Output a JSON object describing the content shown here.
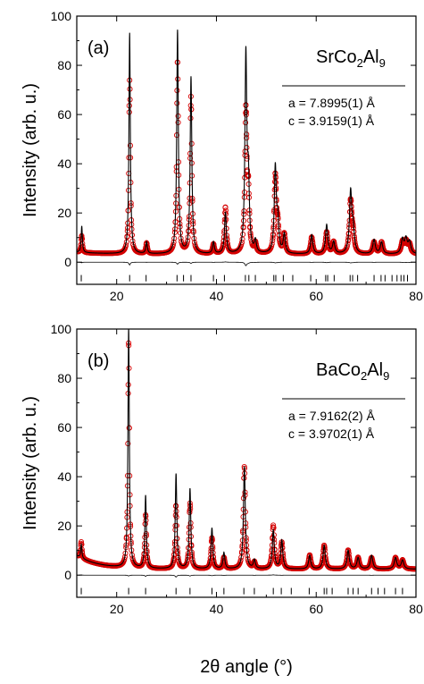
{
  "figure": {
    "xlabel": "2θ angle (°)",
    "ylabel": "Intensity (arb. u.)"
  },
  "chart_data": [
    {
      "type": "line",
      "panel_label": "(a)",
      "compound": {
        "prefix": "SrCo",
        "sub": "2",
        "mid": "Al",
        "sub2": "9"
      },
      "params": [
        "a = 7.8995(1) Å",
        "c = 3.9159(1) Å"
      ],
      "xlabel": "",
      "ylabel": "Intensity (arb. u.)",
      "xlim": [
        12,
        80
      ],
      "ylim": [
        -9,
        100
      ],
      "xticks": [
        20,
        40,
        60,
        80
      ],
      "xtick_labels": [
        "20",
        "40",
        "60",
        "80"
      ],
      "yticks": [
        0,
        20,
        40,
        60,
        80,
        100
      ],
      "ytick_labels": [
        "0",
        "20",
        "40",
        "60",
        "80",
        "100"
      ],
      "background": 3.2,
      "series": [
        {
          "role": "observed",
          "marker": "open-circle",
          "color": "#d40000"
        },
        {
          "role": "calculated",
          "color": "#000000"
        },
        {
          "role": "difference",
          "color": "#000000"
        }
      ],
      "peaks": [
        {
          "x": 13.0,
          "calc": 14,
          "obs": 10
        },
        {
          "x": 22.6,
          "calc": 93,
          "obs": 74
        },
        {
          "x": 26.0,
          "calc": 8,
          "obs": 7.5
        },
        {
          "x": 32.2,
          "calc": 94,
          "obs": 81
        },
        {
          "x": 34.9,
          "calc": 75,
          "obs": 67
        },
        {
          "x": 39.4,
          "calc": 8,
          "obs": 7
        },
        {
          "x": 41.8,
          "calc": 20,
          "obs": 22
        },
        {
          "x": 45.9,
          "calc": 83,
          "obs": 60
        },
        {
          "x": 46.4,
          "calc": 30,
          "obs": 25
        },
        {
          "x": 47.8,
          "calc": 8,
          "obs": 7
        },
        {
          "x": 51.8,
          "calc": 38,
          "obs": 34
        },
        {
          "x": 52.3,
          "calc": 15,
          "obs": 13
        },
        {
          "x": 53.6,
          "calc": 11,
          "obs": 11
        },
        {
          "x": 59.1,
          "calc": 11,
          "obs": 10
        },
        {
          "x": 62.1,
          "calc": 15,
          "obs": 12
        },
        {
          "x": 63.5,
          "calc": 8,
          "obs": 8
        },
        {
          "x": 66.9,
          "calc": 28,
          "obs": 24
        },
        {
          "x": 67.4,
          "calc": 12,
          "obs": 10
        },
        {
          "x": 71.6,
          "calc": 9,
          "obs": 8
        },
        {
          "x": 73.1,
          "calc": 8,
          "obs": 8
        },
        {
          "x": 77.3,
          "calc": 9,
          "obs": 8
        },
        {
          "x": 78.0,
          "calc": 9,
          "obs": 8
        },
        {
          "x": 78.7,
          "calc": 8,
          "obs": 7
        }
      ],
      "reflection_ticks": [
        12.9,
        22.6,
        25.9,
        32.1,
        33.4,
        34.9,
        39.4,
        41.6,
        45.8,
        46.5,
        47.8,
        51.5,
        51.9,
        53.4,
        55.3,
        58.9,
        61.9,
        62.3,
        63.6,
        66.8,
        67.3,
        68.3,
        71.6,
        73.0,
        73.8,
        75.2,
        76.2,
        77.0,
        77.6,
        78.3
      ]
    },
    {
      "type": "line",
      "panel_label": "(b)",
      "compound": {
        "prefix": "BaCo",
        "sub": "2",
        "mid": "Al",
        "sub2": "9"
      },
      "params": [
        "a = 7.9162(2) Å",
        "c = 3.9702(1) Å"
      ],
      "xlabel": "2θ angle (°)",
      "ylabel": "Intensity (arb. u.)",
      "xlim": [
        12,
        80
      ],
      "ylim": [
        -9,
        100
      ],
      "xticks": [
        20,
        40,
        60,
        80
      ],
      "xtick_labels": [
        "20",
        "40",
        "60",
        "80"
      ],
      "yticks": [
        0,
        20,
        40,
        60,
        80,
        100
      ],
      "ytick_labels": [
        "0",
        "20",
        "40",
        "60",
        "80",
        "100"
      ],
      "background": 2.4,
      "series": [
        {
          "role": "observed",
          "marker": "open-circle",
          "color": "#d40000"
        },
        {
          "role": "calculated",
          "color": "#000000"
        },
        {
          "role": "difference",
          "color": "#000000"
        }
      ],
      "peaks": [
        {
          "x": 12.9,
          "calc": 8,
          "obs": 9
        },
        {
          "x": 22.4,
          "calc": 100,
          "obs": 94
        },
        {
          "x": 25.8,
          "calc": 32,
          "obs": 24
        },
        {
          "x": 31.9,
          "calc": 41,
          "obs": 28
        },
        {
          "x": 34.7,
          "calc": 35,
          "obs": 29
        },
        {
          "x": 39.1,
          "calc": 19,
          "obs": 15
        },
        {
          "x": 41.5,
          "calc": 9,
          "obs": 7
        },
        {
          "x": 45.6,
          "calc": 44,
          "obs": 44
        },
        {
          "x": 47.6,
          "calc": 6,
          "obs": 5
        },
        {
          "x": 51.4,
          "calc": 18,
          "obs": 20
        },
        {
          "x": 53.1,
          "calc": 14,
          "obs": 13
        },
        {
          "x": 58.7,
          "calc": 8,
          "obs": 8
        },
        {
          "x": 61.6,
          "calc": 12,
          "obs": 12
        },
        {
          "x": 66.4,
          "calc": 10,
          "obs": 10
        },
        {
          "x": 68.4,
          "calc": 7,
          "obs": 7
        },
        {
          "x": 71.1,
          "calc": 8,
          "obs": 7
        },
        {
          "x": 75.9,
          "calc": 7,
          "obs": 7
        },
        {
          "x": 77.3,
          "calc": 6,
          "obs": 6
        }
      ],
      "reflection_ticks": [
        12.9,
        22.4,
        25.8,
        31.9,
        34.7,
        39.1,
        41.5,
        45.5,
        47.6,
        51.4,
        53.0,
        55.0,
        58.6,
        61.6,
        62.1,
        63.2,
        66.4,
        67.4,
        68.4,
        71.1,
        72.4,
        73.7,
        75.9,
        77.3
      ]
    }
  ]
}
